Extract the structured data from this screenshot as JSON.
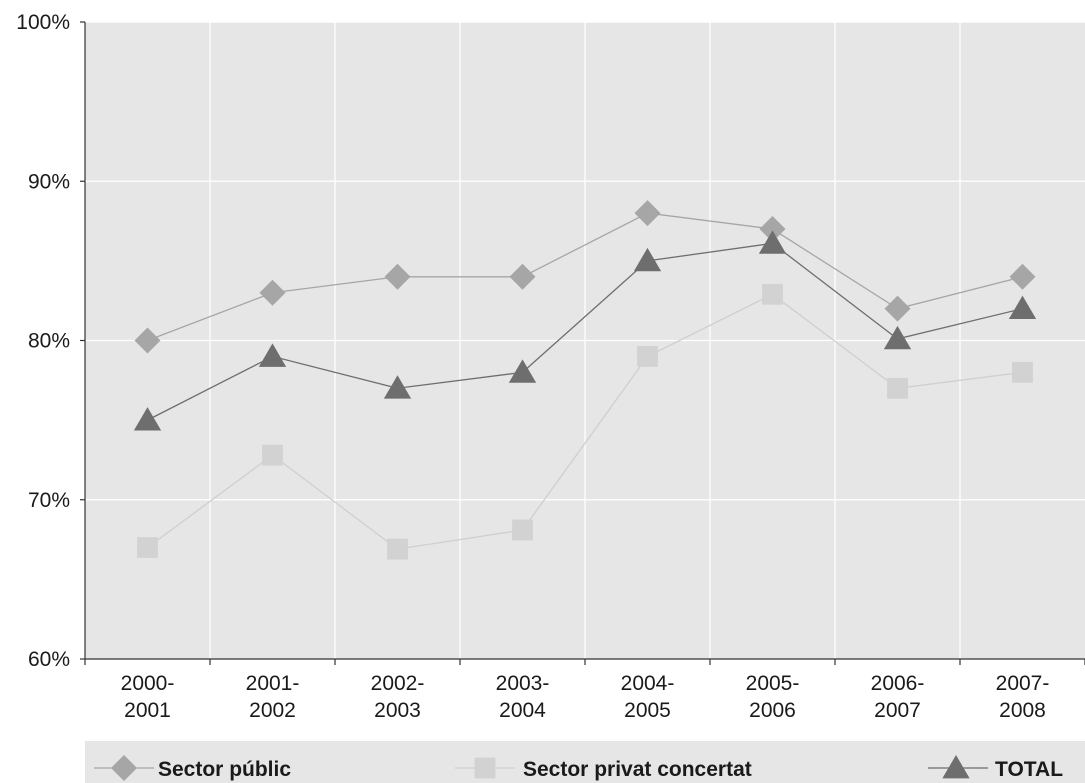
{
  "chart_data": {
    "type": "line",
    "title": "",
    "xlabel": "",
    "ylabel": "",
    "categories": [
      [
        "2000-",
        "2001"
      ],
      [
        "2001-",
        "2002"
      ],
      [
        "2002-",
        "2003"
      ],
      [
        "2003-",
        "2004"
      ],
      [
        "2004-",
        "2005"
      ],
      [
        "2005-",
        "2006"
      ],
      [
        "2006-",
        "2007"
      ],
      [
        "2007-",
        "2008"
      ]
    ],
    "ylim": [
      60,
      100
    ],
    "yticks": [
      60,
      70,
      80,
      90,
      100
    ],
    "ytick_labels": [
      "60%",
      "70%",
      "80%",
      "90%",
      "100%"
    ],
    "grid": true,
    "legend_position": "bottom",
    "series": [
      {
        "name": "Sector públic",
        "marker": "diamond",
        "color": "#a6a6a6",
        "line_color": "#a6a6a6",
        "values": [
          80,
          83,
          84,
          84,
          88,
          87,
          82,
          84
        ]
      },
      {
        "name": "Sector privat concertat",
        "marker": "square",
        "color": "#d2d2d2",
        "line_color": "#cfcfcf",
        "values": [
          67,
          72.8,
          66.9,
          68.1,
          79,
          82.9,
          77,
          78
        ]
      },
      {
        "name": "TOTAL",
        "marker": "triangle",
        "color": "#6e6e6e",
        "line_color": "#6e6e6e",
        "values": [
          75,
          79,
          77,
          78,
          85,
          86.1,
          80.1,
          82
        ]
      }
    ]
  }
}
